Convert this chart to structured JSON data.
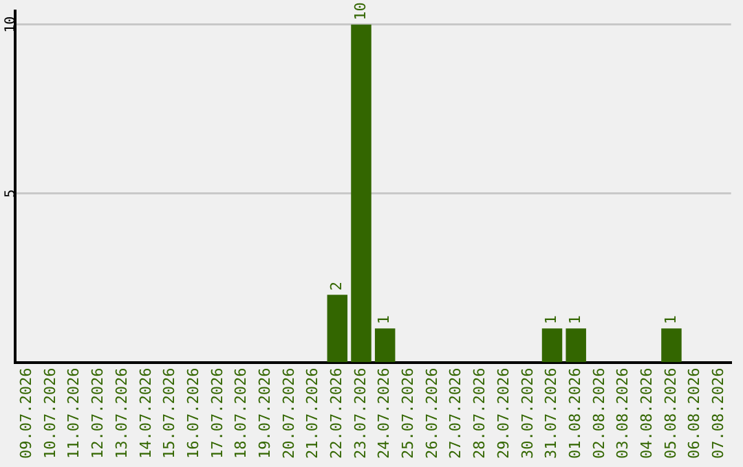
{
  "chart_data": {
    "type": "bar",
    "categories": [
      "09.07.2026",
      "10.07.2026",
      "11.07.2026",
      "12.07.2026",
      "13.07.2026",
      "14.07.2026",
      "15.07.2026",
      "16.07.2026",
      "17.07.2026",
      "18.07.2026",
      "19.07.2026",
      "20.07.2026",
      "21.07.2026",
      "22.07.2026",
      "23.07.2026",
      "24.07.2026",
      "25.07.2026",
      "26.07.2026",
      "27.07.2026",
      "28.07.2026",
      "29.07.2026",
      "30.07.2026",
      "31.07.2026",
      "01.08.2026",
      "02.08.2026",
      "03.08.2026",
      "04.08.2026",
      "05.08.2026",
      "06.08.2026",
      "07.08.2026"
    ],
    "values": [
      0,
      0,
      0,
      0,
      0,
      0,
      0,
      0,
      0,
      0,
      0,
      0,
      0,
      2,
      10,
      1,
      0,
      0,
      0,
      0,
      0,
      0,
      1,
      1,
      0,
      0,
      0,
      1,
      0,
      0
    ],
    "value_labels": [
      null,
      null,
      null,
      null,
      null,
      null,
      null,
      null,
      null,
      null,
      null,
      null,
      null,
      "2",
      "10",
      "1",
      null,
      null,
      null,
      null,
      null,
      null,
      "1",
      "1",
      null,
      null,
      null,
      "1",
      null,
      null
    ],
    "color": "#336600",
    "ylim": [
      0,
      10.4
    ],
    "yticks": [
      5,
      10
    ],
    "grid": "y",
    "legend": false
  }
}
